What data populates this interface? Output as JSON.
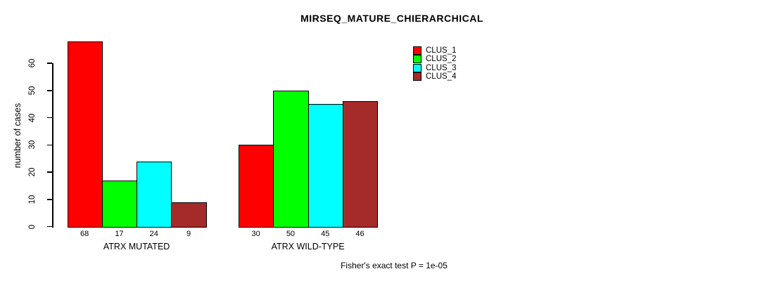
{
  "chart_data": {
    "type": "bar",
    "title": "MIRSEQ_MATURE_CHIERARCHICAL",
    "ylabel": "number of cases",
    "xlabel": "",
    "yticks": [
      0,
      10,
      20,
      30,
      40,
      50,
      60
    ],
    "ylim": [
      0,
      60
    ],
    "grid": false,
    "legend_position": "top-right",
    "categories": [
      "ATRX MUTATED",
      "ATRX WILD-TYPE"
    ],
    "groups": [
      {
        "label": "ATRX MUTATED",
        "values": [
          68,
          17,
          24,
          9
        ]
      },
      {
        "label": "ATRX WILD-TYPE",
        "values": [
          30,
          50,
          45,
          46
        ]
      }
    ],
    "series": [
      {
        "name": "CLUS_1",
        "color": "#FF0000",
        "values": [
          68,
          30
        ]
      },
      {
        "name": "CLUS_2",
        "color": "#00FF00",
        "values": [
          17,
          50
        ]
      },
      {
        "name": "CLUS_3",
        "color": "#00FFFF",
        "values": [
          24,
          45
        ]
      },
      {
        "name": "CLUS_4",
        "color": "#A52A2A",
        "values": [
          9,
          46
        ]
      }
    ],
    "series_colors": [
      "#FF0000",
      "#00FF00",
      "#00FFFF",
      "#A52A2A"
    ],
    "legend": [
      {
        "label": "CLUS_1",
        "color": "#FF0000"
      },
      {
        "label": "CLUS_2",
        "color": "#00FF00"
      },
      {
        "label": "CLUS_3",
        "color": "#00FFFF"
      },
      {
        "label": "CLUS_4",
        "color": "#A52A2A"
      }
    ],
    "bar_value_labels": true,
    "footnote": "Fisher's exact test P = 1e-05"
  }
}
